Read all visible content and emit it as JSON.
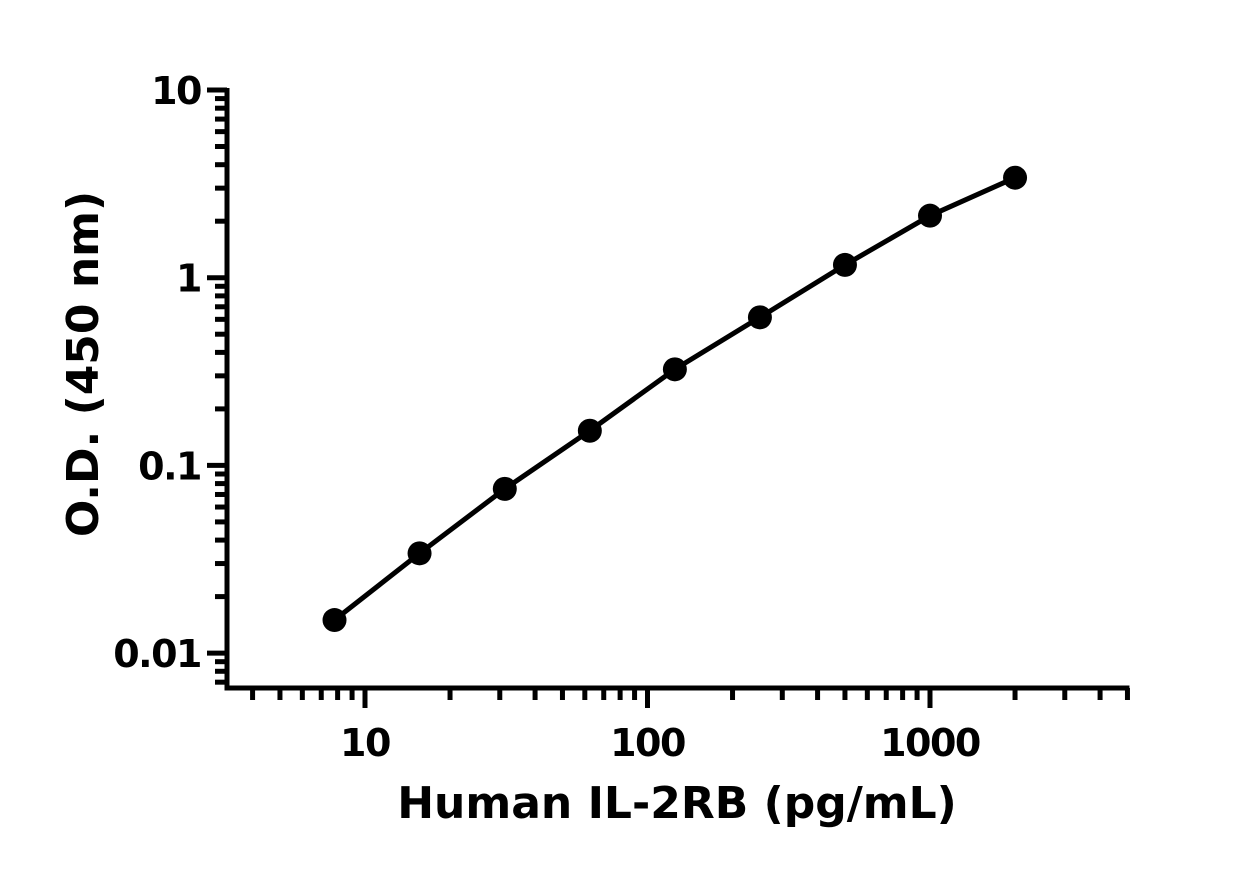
{
  "chart_data": {
    "type": "line",
    "title": "",
    "xlabel": "Human IL-2RB (pg/mL)",
    "ylabel": "O.D. (450 nm)",
    "xscale": "log",
    "yscale": "log",
    "xlim": [
      4,
      5000
    ],
    "ylim": [
      0.007,
      10
    ],
    "x_ticks": [
      10,
      100,
      1000
    ],
    "x_tick_labels": [
      "10",
      "100",
      "1000"
    ],
    "y_ticks": [
      0.01,
      0.1,
      1,
      10
    ],
    "y_tick_labels": [
      "0.01",
      "0.1",
      "1",
      "10"
    ],
    "grid": false,
    "legend": null,
    "series": [
      {
        "name": "Human IL-2RB standard curve",
        "marker": "circle",
        "color": "#000000",
        "x": [
          7.8,
          15.6,
          31.25,
          62.5,
          125,
          250,
          500,
          1000,
          2000
        ],
        "y": [
          0.015,
          0.034,
          0.075,
          0.153,
          0.325,
          0.615,
          1.17,
          2.14,
          3.41
        ]
      }
    ]
  }
}
